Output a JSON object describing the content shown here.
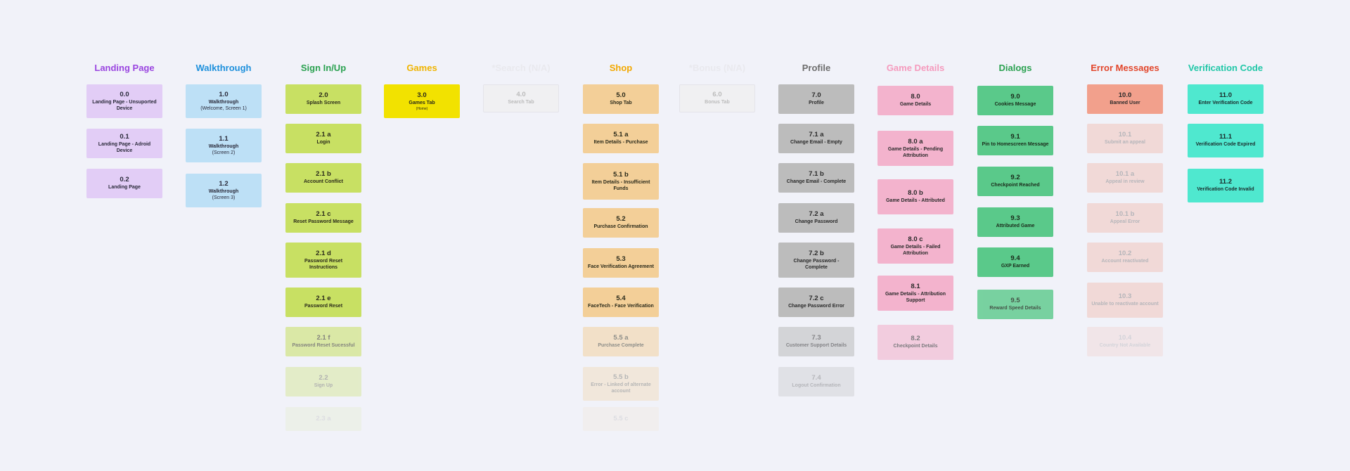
{
  "columns": [
    {
      "title": "Landing Page",
      "color": "#9a45e0",
      "card_color": "#e2cdf6",
      "text_color": "#2a2a3a",
      "cards": [
        {
          "num": "0.0",
          "label": "Landing Page - Unsuported Device"
        },
        {
          "num": "0.1",
          "label": "Landing Page - Adroid Device"
        },
        {
          "num": "0.2",
          "label": "Landing Page"
        }
      ]
    },
    {
      "title": "Walkthrough",
      "color": "#1e90dc",
      "card_color": "#bde0f6",
      "text_color": "#2a2a3a",
      "cards": [
        {
          "num": "1.0",
          "label": "Walkthrough",
          "sub": "(Welcome, Screen 1)"
        },
        {
          "num": "1.1",
          "label": "Walkthrough",
          "sub": "(Screen 2)"
        },
        {
          "num": "1.2",
          "label": "Walkthrough",
          "sub": "(Screen 3)"
        }
      ]
    },
    {
      "title": "Sign In/Up",
      "color": "#2aa150",
      "card_color": "#c8e063",
      "text_color": "#2a2a1a",
      "cards": [
        {
          "num": "2.0",
          "label": "Splash Screen"
        },
        {
          "num": "2.1 a",
          "label": "Login"
        },
        {
          "num": "2.1 b",
          "label": "Account Conflict"
        },
        {
          "num": "2.1 c",
          "label": "Reset Password Message"
        },
        {
          "num": "2.1 d",
          "label": "Password Reset Instructions"
        },
        {
          "num": "2.1 e",
          "label": "Password Reset"
        },
        {
          "num": "2.1 f",
          "label": "Password Reset Sucessful",
          "fade": 0.55
        },
        {
          "num": "2.2",
          "label": "Sign Up",
          "fade": 0.32
        },
        {
          "num": "2.3 a",
          "label": "",
          "fade": 0.1
        }
      ]
    },
    {
      "title": "Games",
      "color": "#f0b400",
      "card_color": "#f2e200",
      "text_color": "#2a2a1a",
      "cards": [
        {
          "num": "3.0",
          "label": "Games Tab",
          "tiny": "(Home)"
        }
      ]
    },
    {
      "title": "*Search (N/A)",
      "color": "#e9e9ee",
      "card_color": "#f0f0f2",
      "text_color": "#bbbbbb",
      "cards": [
        {
          "num": "4.0",
          "label": "Search Tab"
        }
      ]
    },
    {
      "title": "Shop",
      "color": "#f2a800",
      "card_color": "#f3cf98",
      "text_color": "#2a2a1a",
      "cards": [
        {
          "num": "5.0",
          "label": "Shop Tab"
        },
        {
          "num": "5.1 a",
          "label": "Item Details - Purchase"
        },
        {
          "num": "5.1 b",
          "label": "Item Details - Insufficient Funds"
        },
        {
          "num": "5.2",
          "label": "Purchase Confirmation"
        },
        {
          "num": "5.3",
          "label": "Face Verification Agreement"
        },
        {
          "num": "5.4",
          "label": "FaceTech - Face Verification"
        },
        {
          "num": "5.5 a",
          "label": "Purchase Complete",
          "fade": 0.5
        },
        {
          "num": "5.5 b",
          "label": "Error - Linked of alternate account",
          "fade": 0.3
        },
        {
          "num": "5.5 c",
          "label": "",
          "fade": 0.1
        }
      ]
    },
    {
      "title": "*Bonus (N/A)",
      "color": "#e9e9ee",
      "card_color": "#f0f0f2",
      "text_color": "#bbbbbb",
      "cards": [
        {
          "num": "6.0",
          "label": "Bonus Tab"
        }
      ]
    },
    {
      "title": "Profile",
      "color": "#6d6d6d",
      "card_color": "#bcbcbc",
      "text_color": "#2a2a2a",
      "cards": [
        {
          "num": "7.0",
          "label": "Profile"
        },
        {
          "num": "7.1 a",
          "label": "Change Email - Empty"
        },
        {
          "num": "7.1 b",
          "label": "Change Email - Complete"
        },
        {
          "num": "7.2 a",
          "label": "Change Password"
        },
        {
          "num": "7.2 b",
          "label": "Change Password - Complete"
        },
        {
          "num": "7.2 c",
          "label": "Change Password Error"
        },
        {
          "num": "7.3",
          "label": "Customer Support Details",
          "fade": 0.55
        },
        {
          "num": "7.4",
          "label": "Logout Confirmation",
          "fade": 0.3
        }
      ]
    },
    {
      "title": "Game Details",
      "color": "#f59abd",
      "card_color": "#f3b3cd",
      "text_color": "#2a2a2a",
      "cards": [
        {
          "num": "8.0",
          "label": "Game Details"
        },
        {
          "num": "8.0 a",
          "label": "Game Details - Pending Attribution"
        },
        {
          "num": "8.0 b",
          "label": "Game Details - Attributed"
        },
        {
          "num": "8.0 c",
          "label": "Game Details - Failed Attribution"
        },
        {
          "num": "8.1",
          "label": "Game Details - Attribution Support"
        },
        {
          "num": "8.2",
          "label": "Checkpoint Details",
          "fade": 0.6
        }
      ]
    },
    {
      "title": "Dialogs",
      "color": "#2aa150",
      "card_color": "#5ac98a",
      "text_color": "#1a2a1a",
      "cards": [
        {
          "num": "9.0",
          "label": "Cookies Message"
        },
        {
          "num": "9.1",
          "label": "Pin to Homescreen Message"
        },
        {
          "num": "9.2",
          "label": "Checkpoint Reached"
        },
        {
          "num": "9.3",
          "label": "Attributed Game"
        },
        {
          "num": "9.4",
          "label": "GXP Earned"
        },
        {
          "num": "9.5",
          "label": "Reward Speed Details",
          "fade": 0.8
        }
      ]
    },
    {
      "title": "Error Messages",
      "color": "#e2452a",
      "card_color": "#f2a08c",
      "text_color": "#2a2a2a",
      "cards": [
        {
          "num": "10.0",
          "label": "Banned User"
        },
        {
          "num": "10.1",
          "label": "Submit an appeal",
          "fade": 0.3
        },
        {
          "num": "10.1 a",
          "label": "Appeal in review",
          "fade": 0.3
        },
        {
          "num": "10.1 b",
          "label": "Appeal Error",
          "fade": 0.3
        },
        {
          "num": "10.2",
          "label": "Account reactivated",
          "fade": 0.3
        },
        {
          "num": "10.3",
          "label": "Unable to reactivate account",
          "fade": 0.3
        },
        {
          "num": "10.4",
          "label": "Country Not Available",
          "fade": 0.15
        }
      ]
    },
    {
      "title": "Verification Code",
      "color": "#20c7a7",
      "card_color": "#4fe8cf",
      "text_color": "#1a2a2a",
      "cards": [
        {
          "num": "11.0",
          "label": "Enter Verification Code"
        },
        {
          "num": "11.1",
          "label": "Verification Code Expired"
        },
        {
          "num": "11.2",
          "label": "Verification Code Invalid"
        }
      ]
    }
  ]
}
